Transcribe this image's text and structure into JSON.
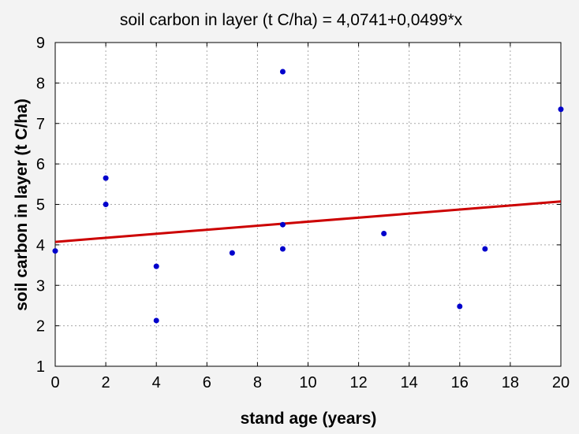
{
  "chart_data": {
    "type": "scatter",
    "title": "soil carbon in layer (t C/ha) = 4,0741+0,0499*x",
    "xlabel": "stand age (years)",
    "ylabel": "soil carbon in layer (t C/ha)",
    "xlim": [
      0,
      20
    ],
    "ylim": [
      1,
      9
    ],
    "xticks": [
      0,
      2,
      4,
      6,
      8,
      10,
      12,
      14,
      16,
      18,
      20
    ],
    "yticks": [
      1,
      2,
      3,
      4,
      5,
      6,
      7,
      8,
      9
    ],
    "grid": true,
    "point_color": "#0000cc",
    "line_color": "#cc0000",
    "points": [
      {
        "x": 0,
        "y": 3.85
      },
      {
        "x": 2,
        "y": 5.65
      },
      {
        "x": 2,
        "y": 5.0
      },
      {
        "x": 4,
        "y": 3.47
      },
      {
        "x": 4,
        "y": 2.13
      },
      {
        "x": 7,
        "y": 3.8
      },
      {
        "x": 9,
        "y": 8.28
      },
      {
        "x": 9,
        "y": 4.5
      },
      {
        "x": 9,
        "y": 3.9
      },
      {
        "x": 13,
        "y": 4.28
      },
      {
        "x": 16,
        "y": 2.48
      },
      {
        "x": 17,
        "y": 3.9
      },
      {
        "x": 20,
        "y": 7.35
      }
    ],
    "regression": {
      "intercept": 4.0741,
      "slope": 0.0499
    }
  }
}
